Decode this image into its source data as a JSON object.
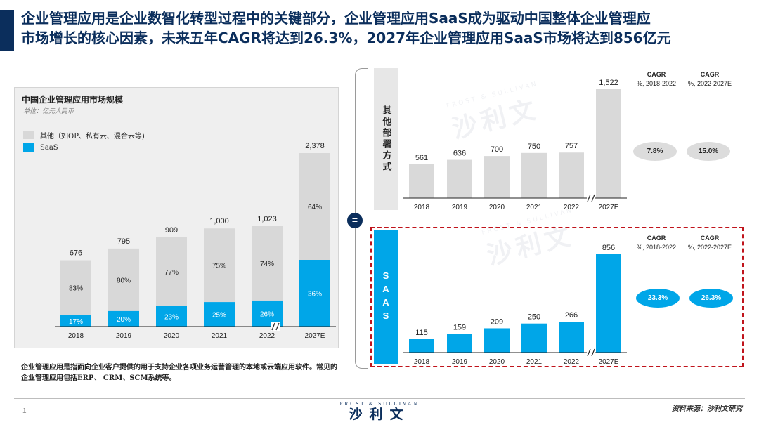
{
  "header": {
    "title_line1": "企业管理应用是企业数智化转型过程中的关键部分，企业管理应用SaaS成为驱动中国整体企业管理应",
    "title_line2": "市场增长的核心因素，未来五年CAGR将达到26.3%，2027年企业管理应用SaaS市场将达到856亿元"
  },
  "left_chart": {
    "title": "中国企业管理应用市场规模",
    "unit": "单位：亿元人民币",
    "legend_other": "其他（如OP、私有云、混合云等)",
    "legend_saas": "SaaS"
  },
  "footnote": "企业管理应用是指面向企业客户提供的用于支持企业各项业务运营管理的本地或云端应用软件。常见的企业管理应用包括ERP、 CRM、SCM系统等。",
  "equals_sign": "=",
  "other_label": "其他部署方式",
  "saas_label": "SAAS",
  "cagr": {
    "header_title": "CAGR",
    "period1": "%, 2018-2022",
    "period2": "%, 2022-2027E",
    "other_1": "7.8%",
    "other_2": "15.0%",
    "saas_1": "23.3%",
    "saas_2": "26.3%"
  },
  "footer": {
    "page_number": "1",
    "logo_en": "FROST & SULLIVAN",
    "logo_cn": "沙利文",
    "source": "资料来源：沙利文研究"
  },
  "watermark": "沙利文",
  "colors": {
    "navy": "#0b2e5c",
    "saas_blue": "#00a6e8",
    "other_grey": "#d8d8d8",
    "dashed_red": "#c0141c"
  },
  "chart_data": [
    {
      "type": "bar",
      "stacked": true,
      "title": "中国企业管理应用市场规模",
      "unit": "单位：亿元人民币",
      "categories": [
        "2018",
        "2019",
        "2020",
        "2021",
        "2022",
        "2027E"
      ],
      "totals": [
        "676",
        "795",
        "909",
        "1,000",
        "1,023",
        "2,378"
      ],
      "total_values": [
        676,
        795,
        909,
        1000,
        1023,
        2378
      ],
      "series": [
        {
          "name": "SaaS",
          "values": [
            115,
            159,
            209,
            250,
            266,
            856
          ],
          "labels": [
            "17%",
            "20%",
            "23%",
            "25%",
            "26%",
            "36%"
          ]
        },
        {
          "name": "其他（如OP、私有云、混合云等)",
          "values": [
            561,
            636,
            700,
            750,
            757,
            1522
          ],
          "labels": [
            "83%",
            "80%",
            "77%",
            "75%",
            "74%",
            "64%"
          ]
        }
      ],
      "axis_break_before": "2027E"
    },
    {
      "type": "bar",
      "categories": [
        "2018",
        "2019",
        "2020",
        "2021",
        "2022",
        "2027E"
      ],
      "values": [
        561,
        636,
        700,
        750,
        757,
        1522
      ],
      "labels": [
        "561",
        "636",
        "700",
        "750",
        "757",
        "1,522"
      ],
      "axis_break_before": "2027E"
    },
    {
      "type": "bar",
      "categories": [
        "2018",
        "2019",
        "2020",
        "2021",
        "2022",
        "2027E"
      ],
      "values": [
        115,
        159,
        209,
        250,
        266,
        856
      ],
      "labels": [
        "115",
        "159",
        "209",
        "250",
        "266",
        "856"
      ],
      "axis_break_before": "2027E"
    }
  ]
}
